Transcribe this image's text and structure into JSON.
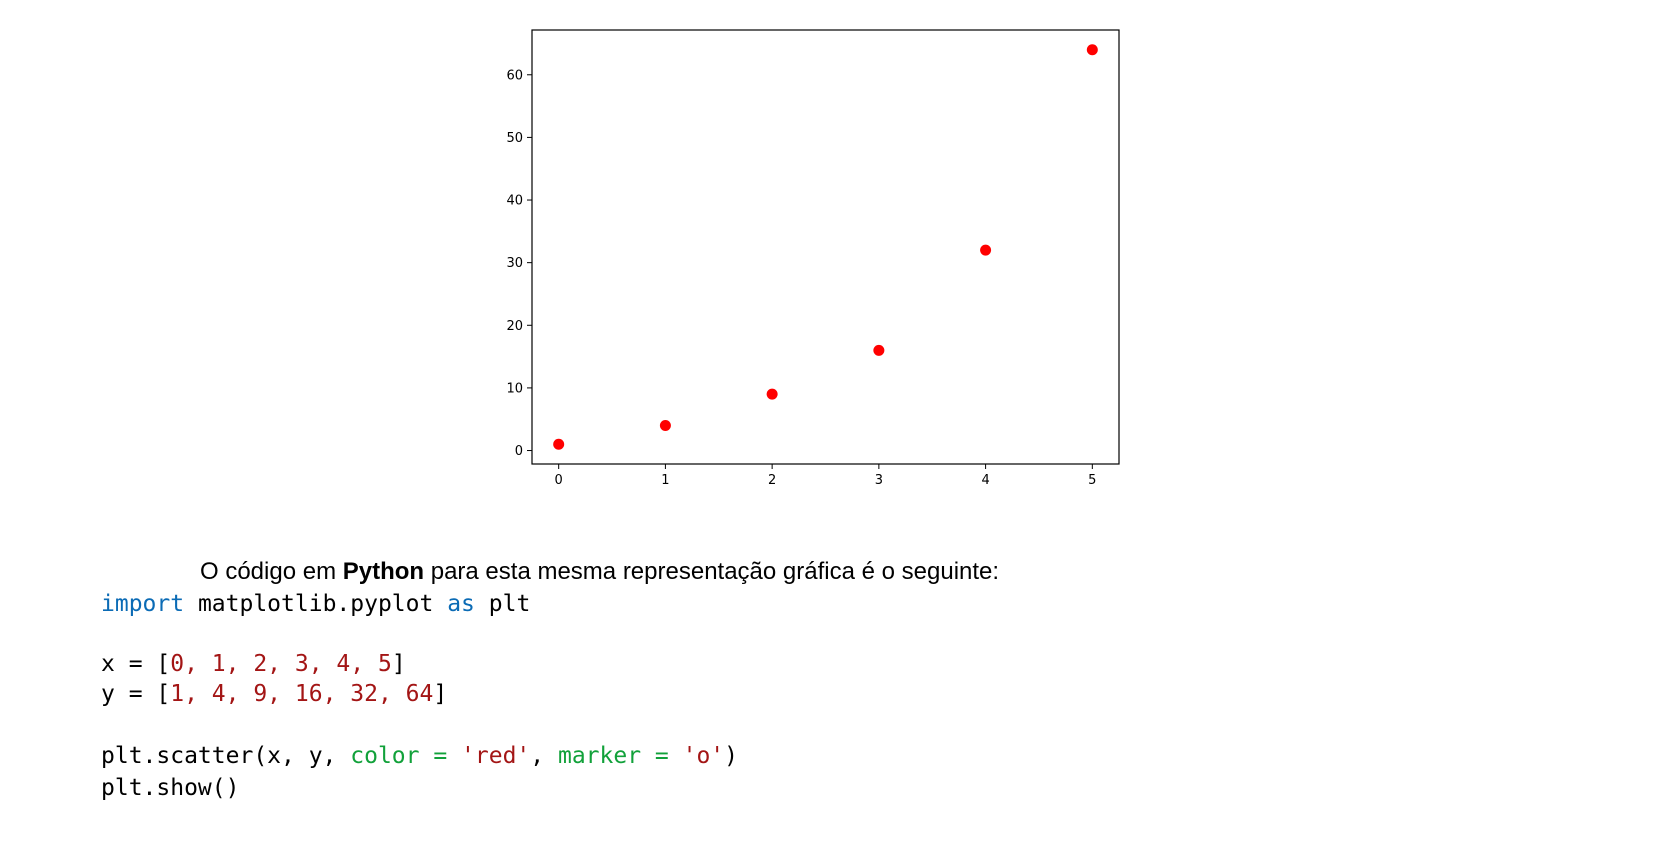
{
  "chart_data": {
    "type": "scatter",
    "x": [
      0,
      1,
      2,
      3,
      4,
      5
    ],
    "y": [
      1,
      4,
      9,
      16,
      32,
      64
    ],
    "xticks": [
      "0",
      "1",
      "2",
      "3",
      "4",
      "5"
    ],
    "yticks": [
      "0",
      "10",
      "20",
      "30",
      "40",
      "50",
      "60"
    ],
    "xlim": [
      -0.25,
      5.25
    ],
    "ylim": [
      -2.15,
      67.15
    ],
    "marker_color": "#ff0000",
    "grid": false,
    "title": "",
    "xlabel": "",
    "ylabel": ""
  },
  "paragraph": {
    "before": "O código em ",
    "bold": "Python",
    "after": " para esta mesma representação gráfica é o seguinte:"
  },
  "code": {
    "l1_kw1": "import",
    "l1_mid": " matplotlib.pyplot ",
    "l1_kw2": "as",
    "l1_end": " plt",
    "l2_pre": "x = [",
    "l2_vals": "0, 1, 2, 3, 4, 5",
    "l2_post": "]",
    "l3_pre": "y = [",
    "l3_vals": "1, 4, 9, 16, 32, 64",
    "l3_post": "]",
    "l4_pre": "plt.scatter(x, y, ",
    "l4_p1": "color = ",
    "l4_s1": "'red'",
    "l4_comma": ", ",
    "l4_p2": "marker = ",
    "l4_s2": "'o'",
    "l4_post": ")",
    "l5": "plt.show()"
  }
}
